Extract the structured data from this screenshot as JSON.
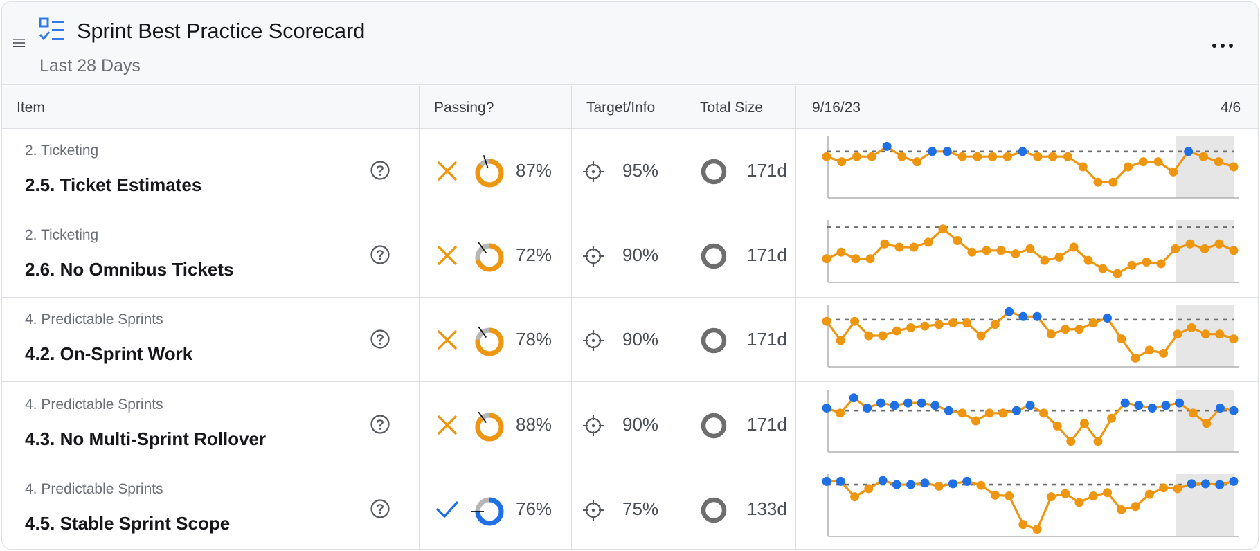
{
  "header": {
    "title": "Sprint Best Practice Scorecard",
    "subtitle": "Last 28 Days",
    "drag_icon": "hamburger-icon",
    "title_icon": "checklist-icon",
    "more_icon": "more-horizontal-icon"
  },
  "columns": {
    "item": "Item",
    "passing": "Passing?",
    "target": "Target/Info",
    "size": "Total Size",
    "trend_start": "9/16/23",
    "trend_end": "4/6"
  },
  "colors": {
    "orange": "#ef9611",
    "blue": "#1f6fe5",
    "gray": "#b6b6b6",
    "dark_gray": "#6e6e6e",
    "shade": "#e6e6e6"
  },
  "rows": [
    {
      "category": "2. Ticketing",
      "name": "2.5. Ticket Estimates",
      "status": "fail",
      "donut_fraction": 0.87,
      "percent": "87%",
      "target": "95%",
      "size": "171d",
      "spark_target": 95,
      "spark": [
        94,
        93,
        94,
        94,
        96,
        94,
        93,
        95,
        95,
        94,
        94,
        94,
        94,
        95,
        94,
        94,
        94,
        92,
        89,
        89,
        92,
        93,
        93,
        91,
        95,
        94,
        93,
        92
      ]
    },
    {
      "category": "2. Ticketing",
      "name": "2.6. No Omnibus Tickets",
      "status": "fail",
      "donut_fraction": 0.72,
      "percent": "72%",
      "target": "90%",
      "size": "171d",
      "spark_target": 90,
      "spark": [
        71,
        75,
        71,
        71,
        80,
        78,
        78,
        81,
        89,
        82,
        75,
        76,
        76,
        74,
        77,
        70,
        72,
        78,
        70,
        65,
        62,
        67,
        69,
        68,
        77,
        80,
        77,
        80,
        76
      ]
    },
    {
      "category": "4. Predictable Sprints",
      "name": "4.2. On-Sprint Work",
      "status": "fail",
      "donut_fraction": 0.78,
      "percent": "78%",
      "target": "90%",
      "size": "171d",
      "spark_target": 90,
      "spark": [
        89,
        77,
        89,
        80,
        80,
        83,
        85,
        86,
        87,
        88,
        88,
        80,
        87,
        95,
        92,
        92,
        81,
        84,
        84,
        88,
        91,
        78,
        66,
        71,
        69,
        81,
        85,
        81,
        81,
        78
      ]
    },
    {
      "category": "4. Predictable Sprints",
      "name": "4.3. No Multi-Sprint Rollover",
      "status": "fail",
      "donut_fraction": 0.88,
      "percent": "88%",
      "target": "90%",
      "size": "171d",
      "spark_target": 90,
      "spark": [
        91,
        89,
        95,
        91,
        93,
        92,
        93,
        93,
        92,
        90,
        89,
        86,
        89,
        89,
        90,
        92,
        89,
        84,
        78,
        85,
        78,
        87,
        93,
        92,
        91,
        92,
        93,
        89,
        85,
        91,
        90
      ]
    },
    {
      "category": "4. Predictable Sprints",
      "name": "4.5. Stable Sprint Scope",
      "status": "pass",
      "donut_fraction": 0.76,
      "percent": "76%",
      "target": "75%",
      "size": "133d",
      "spark_target": 75,
      "spark": [
        79,
        79,
        60,
        70,
        80,
        75,
        75,
        77,
        73,
        76,
        79,
        74,
        62,
        61,
        26,
        20,
        60,
        64,
        53,
        61,
        65,
        44,
        48,
        63,
        71,
        70,
        76,
        76,
        75,
        79
      ]
    }
  ]
}
